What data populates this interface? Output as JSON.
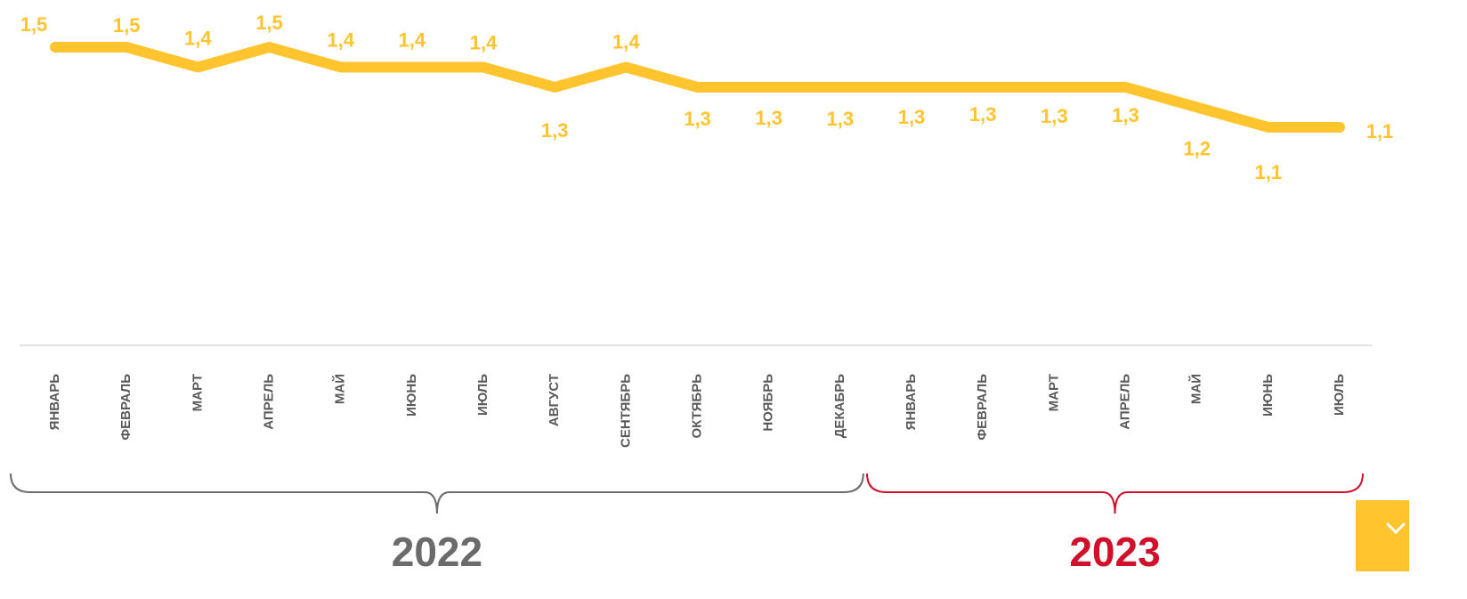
{
  "chart_data": {
    "type": "line",
    "categories": [
      "ЯНВАРЬ",
      "ФЕВРАЛЬ",
      "МАРТ",
      "АПРЕЛЬ",
      "МАЙ",
      "ИЮНЬ",
      "ИЮЛЬ",
      "АВГУСТ",
      "СЕНТЯБРЬ",
      "ОКТЯБРЬ",
      "НОЯБРЬ",
      "ДЕКАБРЬ",
      "ЯНВАРЬ",
      "ФЕВРАЛЬ",
      "МАРТ",
      "АПРЕЛЬ",
      "МАЙ",
      "ИЮНЬ",
      "ИЮЛЬ"
    ],
    "series": [
      {
        "color": "#ffc42e",
        "values": [
          1.5,
          1.5,
          1.4,
          1.5,
          1.4,
          1.4,
          1.4,
          1.3,
          1.4,
          1.3,
          1.3,
          1.3,
          1.3,
          1.3,
          1.3,
          1.3,
          1.2,
          1.1,
          1.1
        ],
        "value_labels": [
          "1,5",
          "1,5",
          "1,4",
          "1,5",
          "1,4",
          "1,4",
          "1,4",
          "1,3",
          "1,4",
          "1,3",
          "1,3",
          "1,3",
          "1,3",
          "1,3",
          "1,3",
          "1,3",
          "1,2",
          "1,1",
          "1,1"
        ]
      }
    ],
    "groups": [
      {
        "label": "2022",
        "color": "#6b6b6b"
      },
      {
        "label": "2023",
        "color": "#d0112b"
      }
    ]
  }
}
